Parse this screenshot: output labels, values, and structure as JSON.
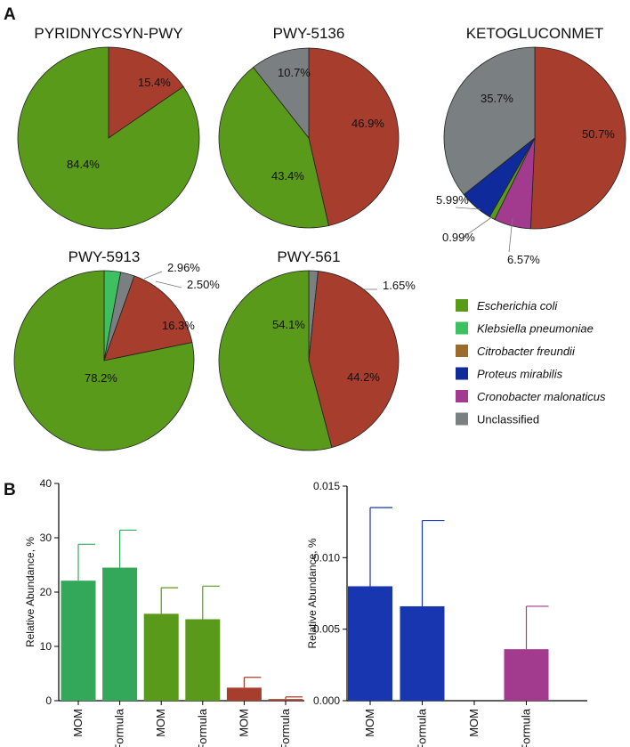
{
  "panels": {
    "a": "A",
    "b": "B"
  },
  "colors": {
    "escherichia": "#5a9a1a",
    "klebsiella": "#3cc060",
    "citrobacter": "#9c6a2a",
    "proteus": "#0f2a9a",
    "cronobacter": "#a23a8e",
    "unclassified": "#7a7f82",
    "red": "#a63d2d",
    "kleb_bar": "#34a85a",
    "proteus_bar": "#1836b0"
  },
  "legend": [
    {
      "label": "Escherichia coli",
      "color_key": "escherichia",
      "italic": true
    },
    {
      "label": "Klebsiella pneumoniae",
      "color_key": "klebsiella",
      "italic": true
    },
    {
      "label": "Citrobacter freundii",
      "color_key": "citrobacter",
      "italic": true
    },
    {
      "label": "Proteus mirabilis",
      "color_key": "proteus",
      "italic": true
    },
    {
      "label": "Cronobacter malonaticus",
      "color_key": "cronobacter",
      "italic": true
    },
    {
      "label": "Unclassified",
      "color_key": "unclassified",
      "italic": false
    }
  ],
  "chart_data": [
    {
      "type": "pie",
      "title": "PYRIDNYCSYN-PWY",
      "slices": [
        {
          "value": 15.4,
          "label": "15.4%",
          "color_key": "red"
        },
        {
          "value": 84.4,
          "label": "84.4%",
          "color_key": "escherichia"
        }
      ]
    },
    {
      "type": "pie",
      "title": "PWY-5136",
      "slices": [
        {
          "value": 46.9,
          "label": "46.9%",
          "color_key": "red"
        },
        {
          "value": 43.4,
          "label": "43.4%",
          "color_key": "escherichia"
        },
        {
          "value": 10.7,
          "label": "10.7%",
          "color_key": "unclassified"
        }
      ]
    },
    {
      "type": "pie",
      "title": "KETOGLUCONMET",
      "slices": [
        {
          "value": 50.7,
          "label": "50.7%",
          "color_key": "red"
        },
        {
          "value": 6.57,
          "label": "6.57%",
          "color_key": "cronobacter"
        },
        {
          "value": 0.99,
          "label": "0.99%",
          "color_key": "escherichia"
        },
        {
          "value": 5.99,
          "label": "5.99%",
          "color_key": "proteus"
        },
        {
          "value": 35.7,
          "label": "35.7%",
          "color_key": "unclassified"
        }
      ]
    },
    {
      "type": "pie",
      "title": "PWY-5913",
      "slices": [
        {
          "value": 2.96,
          "label": "2.96%",
          "color_key": "klebsiella"
        },
        {
          "value": 2.5,
          "label": "2.50%",
          "color_key": "unclassified"
        },
        {
          "value": 16.3,
          "label": "16.3%",
          "color_key": "red"
        },
        {
          "value": 78.2,
          "label": "78.2%",
          "color_key": "escherichia"
        }
      ]
    },
    {
      "type": "pie",
      "title": "PWY-561",
      "slices": [
        {
          "value": 1.65,
          "label": "1.65%",
          "color_key": "unclassified"
        },
        {
          "value": 44.2,
          "label": "44.2%",
          "color_key": "red"
        },
        {
          "value": 54.1,
          "label": "54.1%",
          "color_key": "escherichia"
        }
      ]
    },
    {
      "type": "bar",
      "ylabel": "Relative Abundance, %",
      "ylim": [
        0,
        40
      ],
      "yticks": [
        "0",
        "10",
        "20",
        "30",
        "40"
      ],
      "categories": [
        "MOM",
        "Formula",
        "MOM",
        "Formula",
        "MOM",
        "Formula"
      ],
      "values": [
        22.1,
        24.5,
        16.0,
        15.0,
        2.4,
        0.3
      ],
      "errors": [
        6.7,
        6.9,
        4.8,
        6.1,
        1.9,
        0.4
      ],
      "bar_color_keys": [
        "kleb_bar",
        "kleb_bar",
        "escherichia",
        "escherichia",
        "red",
        "red"
      ]
    },
    {
      "type": "bar",
      "ylabel": "Relative Abundance, %",
      "ylim": [
        0,
        0.015
      ],
      "yticks": [
        "0.000",
        "0.005",
        "0.010",
        "0.015"
      ],
      "categories": [
        "MOM",
        "Formula",
        "MOM",
        "Formula"
      ],
      "values": [
        0.008,
        0.0066,
        0,
        0.0036
      ],
      "errors": [
        0.0055,
        0.006,
        0,
        0.003
      ],
      "bar_color_keys": [
        "proteus_bar",
        "proteus_bar",
        "proteus_bar",
        "cronobacter"
      ]
    }
  ]
}
